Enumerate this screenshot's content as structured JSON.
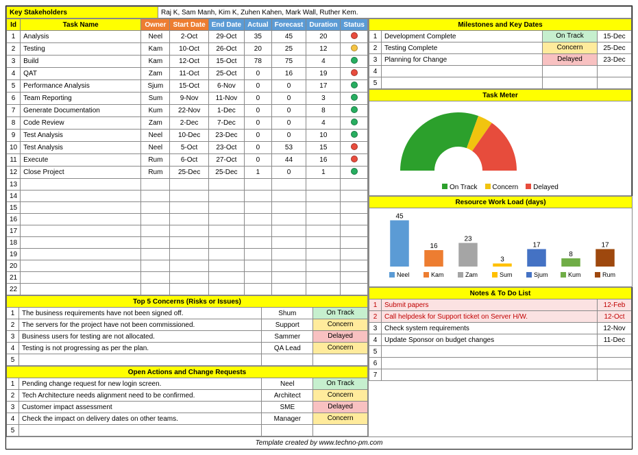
{
  "stakeholders_label": "Key Stakeholders",
  "stakeholders_value": "Raj K, Sam Manh, Kim K, Zuhen Kahen, Mark Wall, Ruther Kem.",
  "task_headers": {
    "id": "Id",
    "name": "Task Name",
    "owner": "Owner",
    "start": "Start Date",
    "end": "End Date",
    "actual": "Actual",
    "forecast": "Forecast",
    "duration": "Duration",
    "status": "Status"
  },
  "milestones_header": "Milestones and Key Dates",
  "milestones": [
    {
      "n": "1",
      "name": "Development Complete",
      "status": "On Track",
      "status_bg": "#c6efce",
      "date": "15-Dec"
    },
    {
      "n": "2",
      "name": "Testing Complete",
      "status": "Concern",
      "status_bg": "#ffeb9c",
      "date": "25-Dec"
    },
    {
      "n": "3",
      "name": "Planning for Change",
      "status": "Delayed",
      "status_bg": "#f8c1c1",
      "date": "23-Dec"
    },
    {
      "n": "4",
      "name": "",
      "status": "",
      "status_bg": "",
      "date": ""
    },
    {
      "n": "5",
      "name": "",
      "status": "",
      "status_bg": "",
      "date": ""
    }
  ],
  "tasks": [
    {
      "id": "1",
      "name": "Analysis",
      "owner": "Neel",
      "start": "2-Oct",
      "end": "29-Oct",
      "actual": "35",
      "forecast": "45",
      "duration": "20",
      "dot": "#e84c3d"
    },
    {
      "id": "2",
      "name": "Testing",
      "owner": "Kam",
      "start": "10-Oct",
      "end": "26-Oct",
      "actual": "20",
      "forecast": "25",
      "duration": "12",
      "dot": "#f5c343"
    },
    {
      "id": "3",
      "name": "Build",
      "owner": "Kam",
      "start": "12-Oct",
      "end": "15-Oct",
      "actual": "78",
      "forecast": "75",
      "duration": "4",
      "dot": "#27ae60"
    },
    {
      "id": "4",
      "name": "QAT",
      "owner": "Zam",
      "start": "11-Oct",
      "end": "25-Oct",
      "actual": "0",
      "forecast": "16",
      "duration": "19",
      "dot": "#e84c3d"
    },
    {
      "id": "5",
      "name": "Performance Analysis",
      "owner": "Sjum",
      "start": "15-Oct",
      "end": "6-Nov",
      "actual": "0",
      "forecast": "0",
      "duration": "17",
      "dot": "#27ae60"
    },
    {
      "id": "6",
      "name": "Team Reporting",
      "owner": "Sum",
      "start": "9-Nov",
      "end": "11-Nov",
      "actual": "0",
      "forecast": "0",
      "duration": "3",
      "dot": "#27ae60"
    },
    {
      "id": "7",
      "name": "Generate Documentation",
      "owner": "Kum",
      "start": "22-Nov",
      "end": "1-Dec",
      "actual": "0",
      "forecast": "0",
      "duration": "8",
      "dot": "#27ae60"
    },
    {
      "id": "8",
      "name": "Code Review",
      "owner": "Zam",
      "start": "2-Dec",
      "end": "7-Dec",
      "actual": "0",
      "forecast": "0",
      "duration": "4",
      "dot": "#27ae60"
    },
    {
      "id": "9",
      "name": "Test Analysis",
      "owner": "Neel",
      "start": "10-Dec",
      "end": "23-Dec",
      "actual": "0",
      "forecast": "0",
      "duration": "10",
      "dot": "#27ae60"
    },
    {
      "id": "10",
      "name": "Test Analysis",
      "owner": "Neel",
      "start": "5-Oct",
      "end": "23-Oct",
      "actual": "0",
      "forecast": "53",
      "duration": "15",
      "dot": "#e84c3d"
    },
    {
      "id": "11",
      "name": "Execute",
      "owner": "Rum",
      "start": "6-Oct",
      "end": "27-Oct",
      "actual": "0",
      "forecast": "44",
      "duration": "16",
      "dot": "#e84c3d"
    },
    {
      "id": "12",
      "name": "Close Project",
      "owner": "Rum",
      "start": "25-Dec",
      "end": "25-Dec",
      "actual": "1",
      "forecast": "0",
      "duration": "1",
      "dot": "#27ae60"
    },
    {
      "id": "13",
      "name": "",
      "owner": "",
      "start": "",
      "end": "",
      "actual": "",
      "forecast": "",
      "duration": "",
      "dot": ""
    },
    {
      "id": "14",
      "name": "",
      "owner": "",
      "start": "",
      "end": "",
      "actual": "",
      "forecast": "",
      "duration": "",
      "dot": ""
    },
    {
      "id": "15",
      "name": "",
      "owner": "",
      "start": "",
      "end": "",
      "actual": "",
      "forecast": "",
      "duration": "",
      "dot": ""
    },
    {
      "id": "16",
      "name": "",
      "owner": "",
      "start": "",
      "end": "",
      "actual": "",
      "forecast": "",
      "duration": "",
      "dot": ""
    },
    {
      "id": "17",
      "name": "",
      "owner": "",
      "start": "",
      "end": "",
      "actual": "",
      "forecast": "",
      "duration": "",
      "dot": ""
    },
    {
      "id": "18",
      "name": "",
      "owner": "",
      "start": "",
      "end": "",
      "actual": "",
      "forecast": "",
      "duration": "",
      "dot": ""
    },
    {
      "id": "19",
      "name": "",
      "owner": "",
      "start": "",
      "end": "",
      "actual": "",
      "forecast": "",
      "duration": "",
      "dot": ""
    },
    {
      "id": "20",
      "name": "",
      "owner": "",
      "start": "",
      "end": "",
      "actual": "",
      "forecast": "",
      "duration": "",
      "dot": ""
    },
    {
      "id": "21",
      "name": "",
      "owner": "",
      "start": "",
      "end": "",
      "actual": "",
      "forecast": "",
      "duration": "",
      "dot": ""
    },
    {
      "id": "22",
      "name": "",
      "owner": "",
      "start": "",
      "end": "",
      "actual": "",
      "forecast": "",
      "duration": "",
      "dot": ""
    }
  ],
  "concerns_header": "Top 5 Concerns (Risks or Issues)",
  "concerns": [
    {
      "n": "1",
      "text": "The business requirements have not been signed off.",
      "owner": "Shum",
      "status": "On Track",
      "bg": "#c6efce"
    },
    {
      "n": "2",
      "text": "The servers for the project have not been commissioned.",
      "owner": "Support",
      "status": "Concern",
      "bg": "#ffeb9c"
    },
    {
      "n": "3",
      "text": "Business users for testing are not allocated.",
      "owner": "Sammer",
      "status": "Delayed",
      "bg": "#f8c1c1"
    },
    {
      "n": "4",
      "text": "Testing is not progressing as per the plan.",
      "owner": "QA Lead",
      "status": "Concern",
      "bg": "#ffeb9c"
    },
    {
      "n": "5",
      "text": "",
      "owner": "",
      "status": "",
      "bg": ""
    }
  ],
  "actions_header": "Open Actions and Change Requests",
  "actions": [
    {
      "n": "1",
      "text": "Pending change request for new login screen.",
      "owner": "Neel",
      "status": "On Track",
      "bg": "#c6efce"
    },
    {
      "n": "2",
      "text": "Tech Architecture needs alignment need to be confirmed.",
      "owner": "Architect",
      "status": "Concern",
      "bg": "#ffeb9c"
    },
    {
      "n": "3",
      "text": "Customer impact assessment",
      "owner": "SME",
      "status": "Delayed",
      "bg": "#f8c1c1"
    },
    {
      "n": "4",
      "text": "Check the impact on delivery dates on other teams.",
      "owner": "Manager",
      "status": "Concern",
      "bg": "#ffeb9c"
    },
    {
      "n": "5",
      "text": "",
      "owner": "",
      "status": "",
      "bg": ""
    }
  ],
  "taskmeter_header": "Task Meter",
  "taskmeter_legend": {
    "ontrack": "On Track",
    "concern": "Concern",
    "delayed": "Delayed"
  },
  "taskmeter_colors": {
    "ontrack": "#2ca02c",
    "concern": "#f1c40f",
    "delayed": "#e74c3c"
  },
  "taskmeter_slices": {
    "ontrack_deg": 110,
    "concern_deg": 15,
    "delayed_deg": 55
  },
  "workload_header": "Resource Work Load (days)",
  "workload": {
    "type": "bar",
    "labels": [
      "Neel",
      "Kam",
      "Zam",
      "Sum",
      "Sjum",
      "Kum",
      "Rum"
    ],
    "values": [
      45,
      16,
      23,
      3,
      17,
      8,
      17
    ],
    "colors": [
      "#5b9bd5",
      "#ed7d31",
      "#a5a5a5",
      "#ffc000",
      "#4472c4",
      "#70ad47",
      "#9e480e"
    ],
    "ymax": 50
  },
  "notes_header": "Notes & To Do List",
  "notes": [
    {
      "n": "1",
      "text": "Submit papers",
      "date": "12-Feb",
      "risk": true
    },
    {
      "n": "2",
      "text": "Call helpdesk for Support ticket on Server H/W.",
      "date": "12-Oct",
      "risk": true
    },
    {
      "n": "3",
      "text": "Check system requirements",
      "date": "12-Nov",
      "risk": false
    },
    {
      "n": "4",
      "text": "Update Sponsor on budget changes",
      "date": "11-Dec",
      "risk": false
    },
    {
      "n": "5",
      "text": "",
      "date": "",
      "risk": false
    },
    {
      "n": "6",
      "text": "",
      "date": "",
      "risk": false
    },
    {
      "n": "7",
      "text": "",
      "date": "",
      "risk": false
    }
  ],
  "footer": "Template created by www.techno-pm.com"
}
